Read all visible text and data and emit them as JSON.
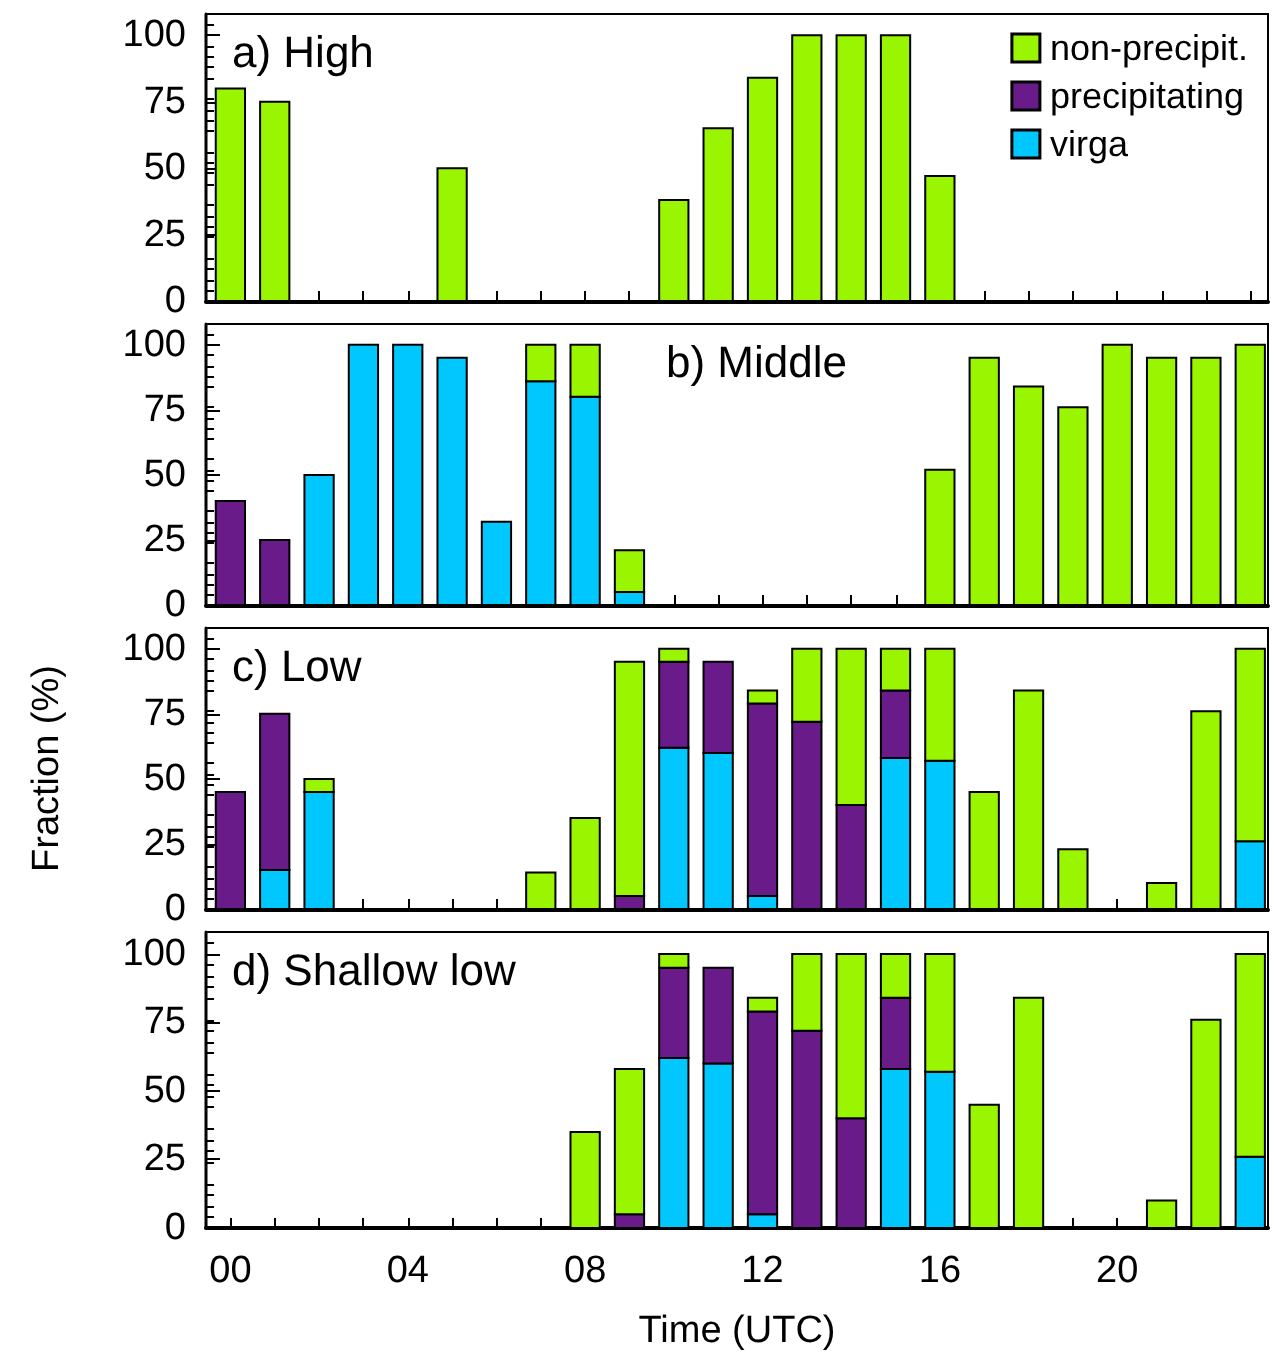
{
  "chart_data": [
    {
      "type": "bar",
      "title": "a) High",
      "stacked": true,
      "legend": "top right",
      "tick_labels": "y",
      "x": [
        0,
        1,
        5,
        10,
        11,
        12,
        13,
        14,
        15,
        16
      ],
      "xlim": [
        -0.55,
        23.4
      ],
      "ylim": [
        0,
        108
      ],
      "yticks": [
        0,
        25,
        50,
        75,
        100
      ],
      "xticks": [
        0,
        1,
        2,
        3,
        4,
        5,
        6,
        7,
        8,
        9,
        10,
        11,
        12,
        13,
        14,
        15,
        16,
        17,
        18,
        19,
        20,
        21,
        22,
        23
      ],
      "series": [
        {
          "name": "virga",
          "color": "#00c8ff",
          "values": [
            null,
            null,
            null,
            null,
            null,
            null,
            null,
            null,
            null,
            null
          ]
        },
        {
          "name": "precipitating",
          "color": "#6a1b8a",
          "values": [
            null,
            null,
            null,
            null,
            null,
            null,
            null,
            null,
            null,
            null
          ]
        },
        {
          "name": "non-precipit.",
          "color": "#99f500",
          "values": [
            80,
            75,
            50,
            38,
            65,
            84,
            100,
            100,
            100,
            47
          ]
        }
      ]
    },
    {
      "type": "bar",
      "title": "b) Middle",
      "stacked": true,
      "tick_labels": "y",
      "x": [
        0,
        1,
        2,
        3,
        4,
        5,
        6,
        7,
        8,
        9,
        16,
        17,
        18,
        19,
        20,
        21,
        22,
        23
      ],
      "xlim": [
        -0.55,
        23.4
      ],
      "ylim": [
        0,
        108
      ],
      "yticks": [
        0,
        25,
        50,
        75,
        100
      ],
      "xticks": [
        0,
        1,
        2,
        3,
        4,
        5,
        6,
        7,
        8,
        9,
        10,
        11,
        12,
        13,
        14,
        15,
        16,
        17,
        18,
        19,
        20,
        21,
        22,
        23
      ],
      "series": [
        {
          "color": "#00c8ff",
          "values": [
            null,
            null,
            50,
            100,
            100,
            95,
            32,
            86,
            80,
            5,
            null,
            null,
            null,
            null,
            null,
            null,
            null,
            null
          ]
        },
        {
          "color": "#6a1b8a",
          "values": [
            40,
            25,
            null,
            null,
            null,
            null,
            null,
            null,
            null,
            null,
            null,
            null,
            null,
            null,
            null,
            null,
            null,
            null
          ]
        },
        {
          "color": "#99f500",
          "values": [
            null,
            null,
            null,
            null,
            null,
            null,
            null,
            14,
            20,
            16,
            52,
            95,
            84,
            76,
            100,
            95,
            95,
            100
          ]
        }
      ]
    },
    {
      "type": "bar",
      "title": "c) Low",
      "ylabel": "Fraction (%)",
      "stacked": true,
      "tick_labels": "y",
      "x": [
        0,
        1,
        2,
        7,
        8,
        9,
        10,
        11,
        12,
        13,
        14,
        15,
        16,
        17,
        18,
        19,
        21,
        22,
        23
      ],
      "xlim": [
        -0.55,
        23.4
      ],
      "ylim": [
        0,
        108
      ],
      "yticks": [
        0,
        25,
        50,
        75,
        100
      ],
      "xticks": [
        0,
        1,
        2,
        3,
        4,
        5,
        6,
        7,
        8,
        9,
        10,
        11,
        12,
        13,
        14,
        15,
        16,
        17,
        18,
        19,
        20,
        21,
        22,
        23
      ],
      "series": [
        {
          "color": "#00c8ff",
          "values": [
            null,
            15,
            45,
            null,
            null,
            null,
            62,
            60,
            5,
            null,
            null,
            58,
            57,
            null,
            null,
            null,
            null,
            null,
            26
          ]
        },
        {
          "color": "#6a1b8a",
          "values": [
            45,
            60,
            null,
            null,
            null,
            5,
            33,
            35,
            74,
            72,
            40,
            26,
            null,
            null,
            null,
            null,
            null,
            null,
            null
          ]
        },
        {
          "color": "#99f500",
          "values": [
            null,
            null,
            5,
            14,
            35,
            90,
            5,
            null,
            5,
            28,
            60,
            16,
            43,
            45,
            84,
            23,
            10,
            76,
            74
          ]
        }
      ]
    },
    {
      "type": "bar",
      "title": "d) Shallow low",
      "xlabel": "Time (UTC)",
      "stacked": true,
      "x": [
        8,
        9,
        10,
        11,
        12,
        13,
        14,
        15,
        16,
        17,
        18,
        21,
        22,
        23
      ],
      "xlim": [
        -0.55,
        23.4
      ],
      "ylim": [
        0,
        108
      ],
      "yticks": [
        0,
        25,
        50,
        75,
        100
      ],
      "xticks": [
        {
          "value": 0,
          "label": "00"
        },
        {
          "value": 1,
          "label": null
        },
        {
          "value": 2,
          "label": null
        },
        {
          "value": 3,
          "label": null
        },
        {
          "value": 4,
          "label": "04"
        },
        {
          "value": 5,
          "label": null
        },
        {
          "value": 6,
          "label": null
        },
        {
          "value": 7,
          "label": null
        },
        {
          "value": 8,
          "label": "08"
        },
        {
          "value": 9,
          "label": null
        },
        {
          "value": 10,
          "label": null
        },
        {
          "value": 11,
          "label": null
        },
        {
          "value": 12,
          "label": "12"
        },
        {
          "value": 13,
          "label": null
        },
        {
          "value": 14,
          "label": null
        },
        {
          "value": 15,
          "label": null
        },
        {
          "value": 16,
          "label": "16"
        },
        {
          "value": 17,
          "label": null
        },
        {
          "value": 18,
          "label": null
        },
        {
          "value": 19,
          "label": null
        },
        {
          "value": 20,
          "label": "20"
        },
        {
          "value": 21,
          "label": null
        },
        {
          "value": 22,
          "label": null
        },
        {
          "value": 23,
          "label": null
        }
      ],
      "series": [
        {
          "color": "#00c8ff",
          "values": [
            null,
            null,
            62,
            60,
            5,
            null,
            null,
            58,
            57,
            null,
            null,
            null,
            null,
            26
          ]
        },
        {
          "color": "#6a1b8a",
          "values": [
            null,
            5,
            33,
            35,
            74,
            72,
            40,
            26,
            null,
            null,
            null,
            null,
            null,
            null
          ]
        },
        {
          "color": "#99f500",
          "values": [
            35,
            53,
            5,
            null,
            5,
            28,
            60,
            16,
            43,
            45,
            84,
            10,
            76,
            74
          ]
        }
      ]
    }
  ]
}
